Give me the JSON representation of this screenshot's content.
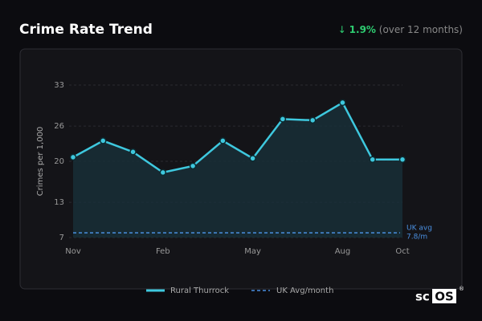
{
  "header": {
    "title": "Crime Rate Trend",
    "arrow": "↓",
    "change": "1.9%",
    "change_note": "(over 12 months)"
  },
  "chart_data": {
    "type": "line",
    "y_label": "Crimes per 1,000",
    "categories": [
      "Nov",
      null,
      null,
      "Feb",
      null,
      null,
      "May",
      null,
      null,
      "Aug",
      null,
      "Oct"
    ],
    "series": [
      {
        "name": "Rural Thurrock",
        "color": "#3ec8de",
        "values": [
          20.7,
          23.5,
          21.6,
          18.1,
          19.2,
          23.5,
          20.5,
          27.2,
          27.0,
          30.0,
          20.3,
          20.3
        ]
      }
    ],
    "reference": {
      "name": "UK Avg/month",
      "value": 7.8,
      "label": "UK avg",
      "value_label": "7.8/m",
      "color": "#4a8fe0"
    },
    "ylim": [
      7,
      33
    ],
    "yticks": [
      7,
      13,
      20,
      26,
      33
    ],
    "grid": true,
    "area_fill": "#18303a"
  },
  "logo": {
    "prefix": "sc",
    "box": "OS",
    "mark": "®"
  }
}
